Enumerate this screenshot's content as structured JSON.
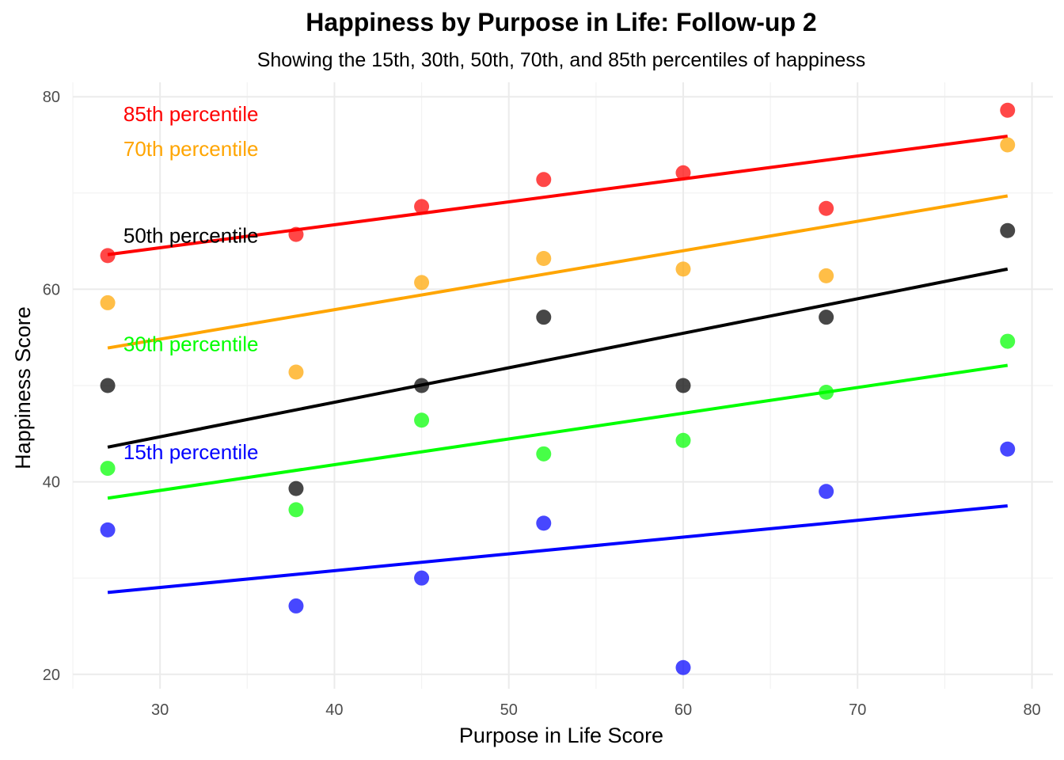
{
  "chart_data": {
    "type": "scatter",
    "title": "Happiness by Purpose in Life: Follow-up 2",
    "subtitle": "Showing the 15th, 30th, 50th, 70th, and 85th percentiles of happiness",
    "xlabel": "Purpose in Life Score",
    "ylabel": "Happiness Score",
    "xlim": [
      25,
      81.2
    ],
    "ylim": [
      18.5,
      81.5
    ],
    "xticks": [
      30,
      40,
      50,
      60,
      70,
      80
    ],
    "yticks": [
      20,
      40,
      60,
      80
    ],
    "grid": true,
    "x": [
      27,
      37.8,
      45,
      52,
      60,
      68.2,
      78.6
    ],
    "series": [
      {
        "name": "85th percentile",
        "color": "#ff0000",
        "values": [
          63.5,
          65.7,
          68.6,
          71.4,
          72.1,
          68.4,
          78.6
        ],
        "fit": {
          "x": [
            27,
            78.6
          ],
          "y": [
            63.6,
            75.9
          ]
        }
      },
      {
        "name": "70th percentile",
        "color": "#ffa500",
        "values": [
          58.6,
          51.4,
          60.7,
          63.2,
          62.1,
          61.4,
          75.0
        ],
        "fit": {
          "x": [
            27,
            78.6
          ],
          "y": [
            53.9,
            69.7
          ]
        }
      },
      {
        "name": "50th percentile",
        "color": "#000000",
        "values": [
          50.0,
          39.3,
          50.0,
          57.1,
          50.0,
          57.1,
          66.1
        ],
        "fit": {
          "x": [
            27,
            78.6
          ],
          "y": [
            43.6,
            62.1
          ]
        }
      },
      {
        "name": "30th percentile",
        "color": "#00ff00",
        "values": [
          41.4,
          37.1,
          46.4,
          42.9,
          44.3,
          49.3,
          54.6
        ],
        "fit": {
          "x": [
            27,
            78.6
          ],
          "y": [
            38.3,
            52.1
          ]
        }
      },
      {
        "name": "15th percentile",
        "color": "#0000ff",
        "values": [
          35.0,
          27.1,
          30.0,
          35.7,
          20.7,
          39.0,
          43.4
        ],
        "fit": {
          "x": [
            27,
            78.6
          ],
          "y": [
            28.5,
            37.5
          ]
        }
      }
    ],
    "annotations": [
      {
        "text": "85th percentile",
        "color": "#ff0000",
        "x": 27.9,
        "y": 78.2
      },
      {
        "text": "70th percentile",
        "color": "#ffa500",
        "x": 27.9,
        "y": 74.6
      },
      {
        "text": "50th percentile",
        "color": "#000000",
        "x": 27.9,
        "y": 65.6
      },
      {
        "text": "30th percentile",
        "color": "#00ff00",
        "x": 27.9,
        "y": 54.3
      },
      {
        "text": "15th percentile",
        "color": "#0000ff",
        "x": 27.9,
        "y": 43.1
      }
    ]
  }
}
